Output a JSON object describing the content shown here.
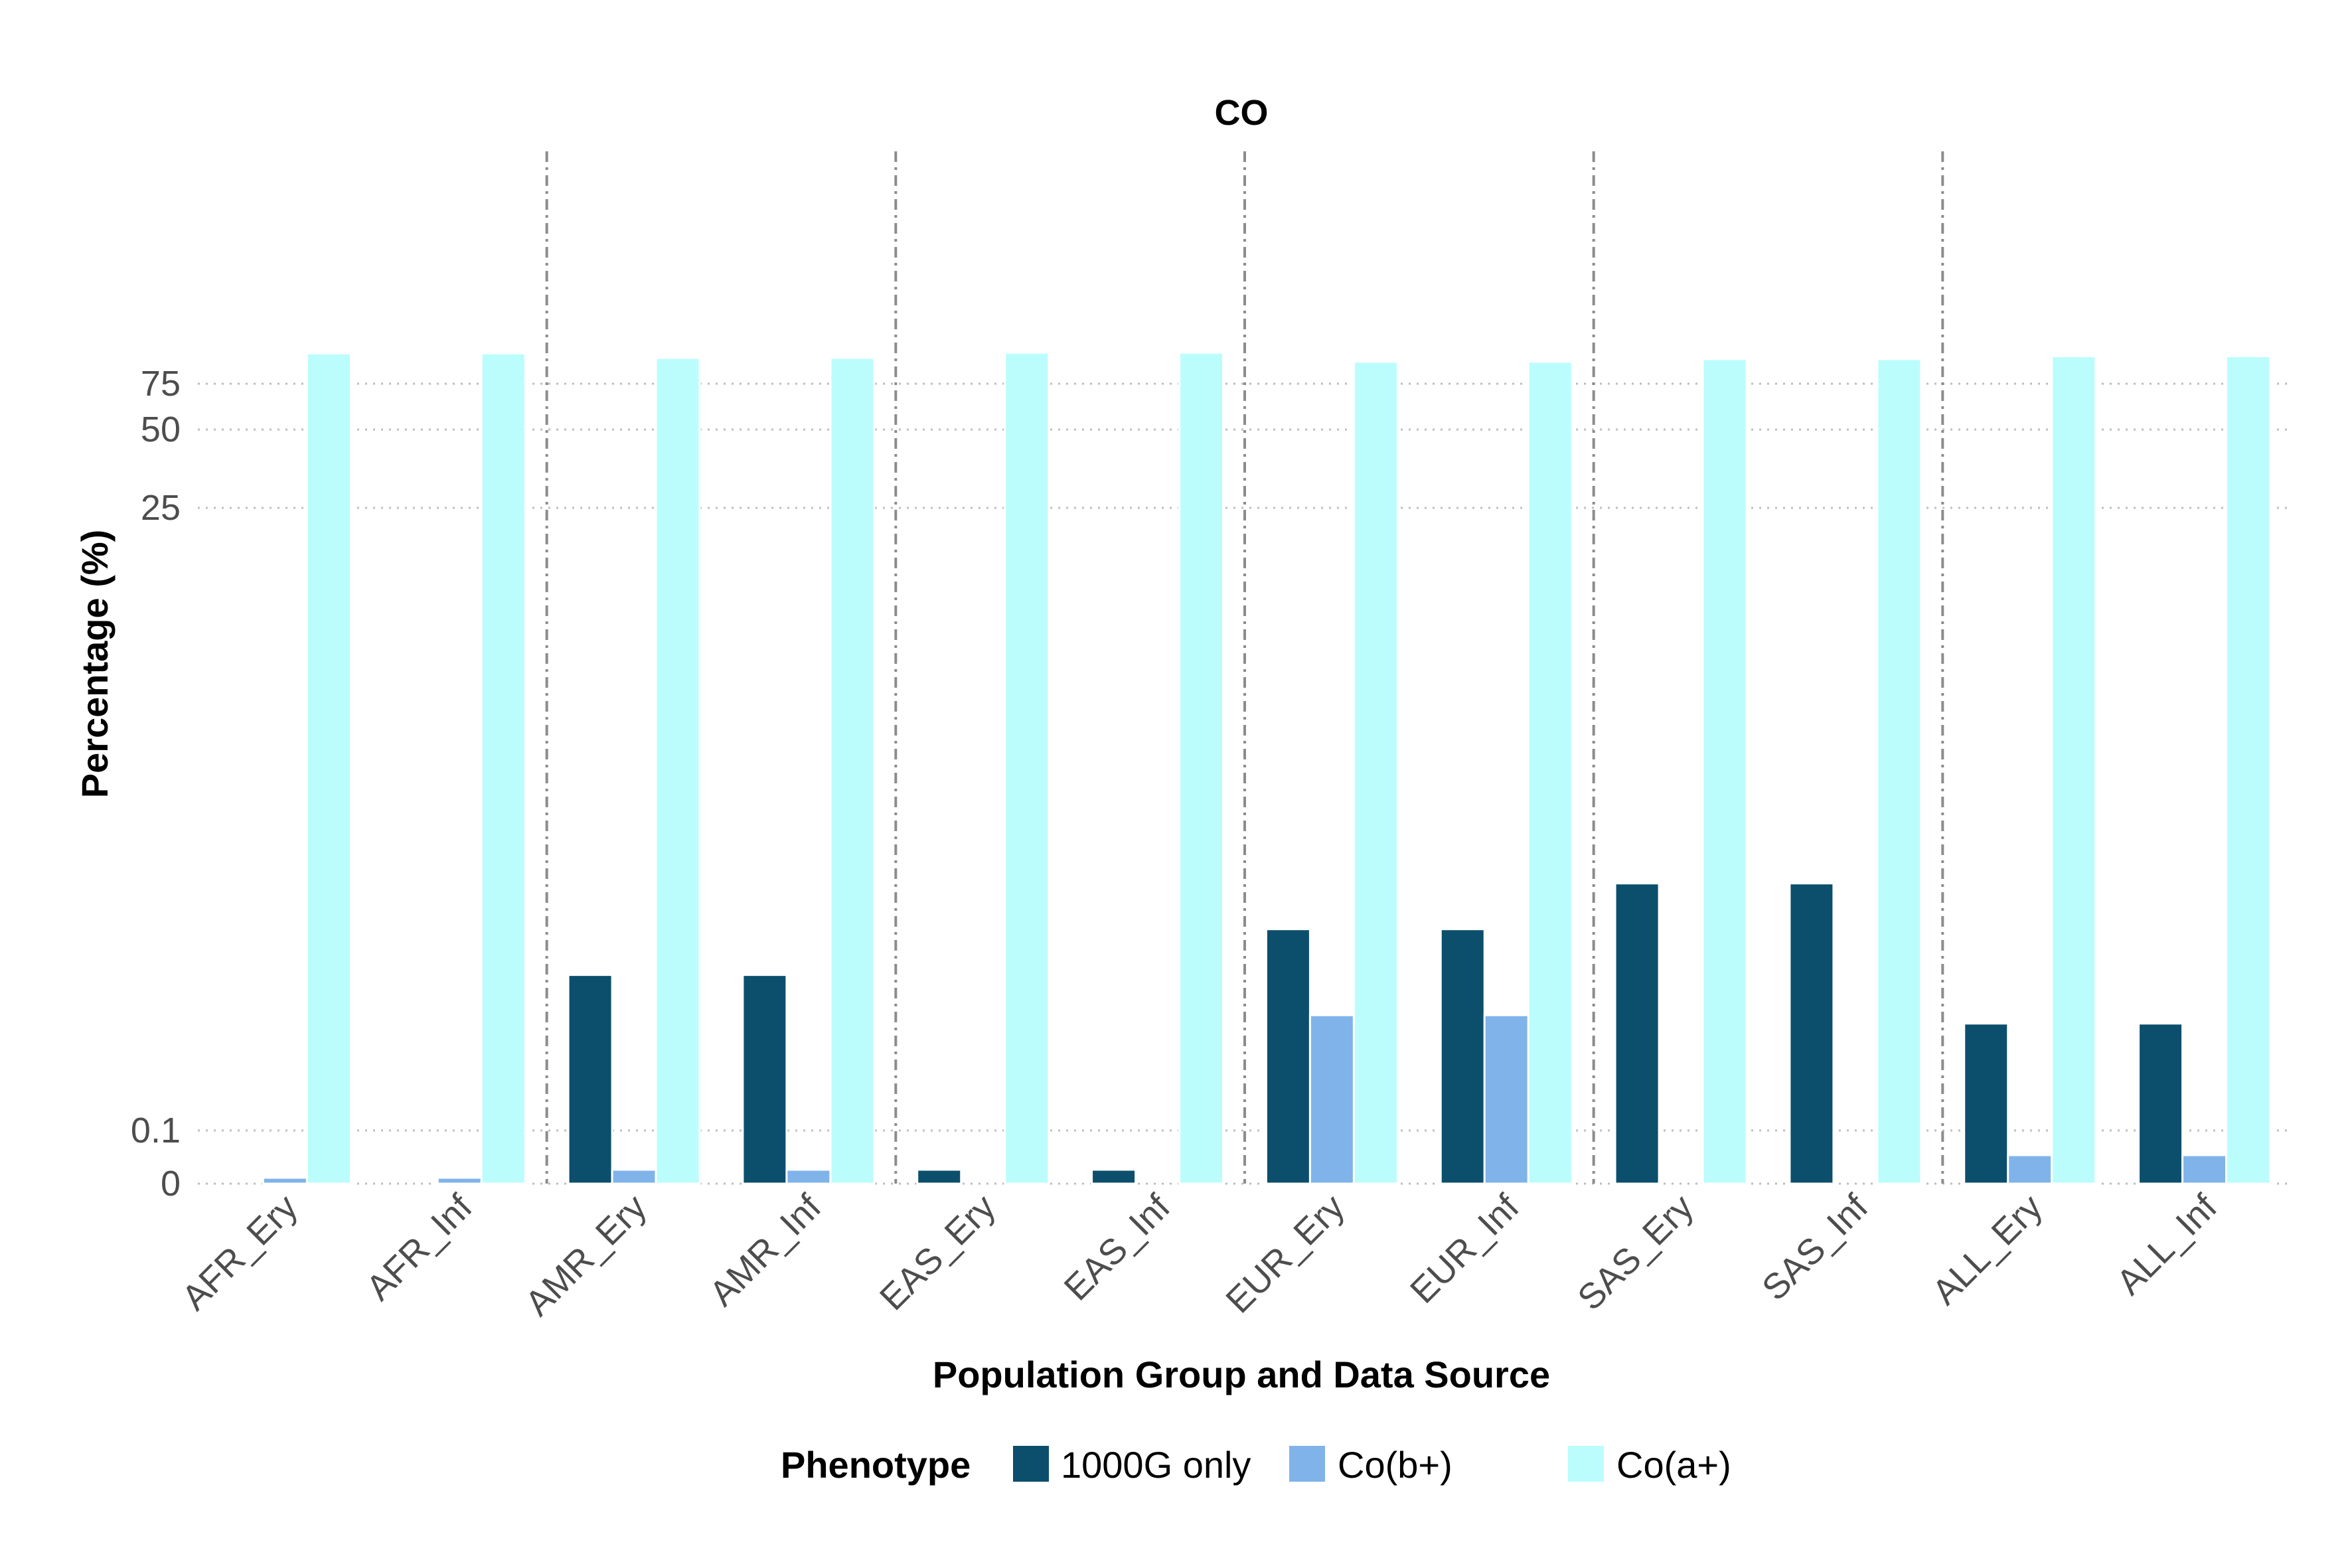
{
  "chart_data": {
    "type": "bar",
    "title": "CO",
    "xlabel": "Population Group and Data Source",
    "ylabel": "Percentage (%)",
    "y_axis_scale": "pseudo-log (expanded near 0)",
    "yticks": [
      0,
      0.1,
      25,
      50,
      75
    ],
    "ytick_labels": [
      "0",
      "0.1",
      "25",
      "50",
      "75"
    ],
    "ylim": [
      0,
      100
    ],
    "grid": "horizontal dotted",
    "group_separators": "dash-dot vertical lines between population groups",
    "categories": [
      "AFR_Ery",
      "AFR_Inf",
      "AMR_Ery",
      "AMR_Inf",
      "EAS_Ery",
      "EAS_Inf",
      "EUR_Ery",
      "EUR_Inf",
      "SAS_Ery",
      "SAS_Inf",
      "ALL_Ery",
      "ALL_Inf"
    ],
    "series": [
      {
        "name": "1000G only",
        "color": "#0b4f6c",
        "values": [
          0.055,
          0.055,
          0.4,
          0.4,
          0.07,
          0.07,
          0.6,
          0.6,
          0.9,
          0.9,
          0.26,
          0.26
        ]
      },
      {
        "name": "Co(b+)",
        "color": "#7fb3ea",
        "values": [
          0.065,
          0.065,
          0.07,
          0.07,
          0,
          0,
          0.28,
          0.28,
          0.04,
          0.04,
          0.08,
          0.08
        ]
      },
      {
        "name": "Co(a+)",
        "color": "#bbfdfd",
        "values": [
          98.1,
          98.1,
          94.2,
          94.2,
          98.7,
          98.7,
          91.1,
          91.1,
          93.2,
          93.2,
          95.7,
          95.7
        ]
      }
    ],
    "legend": {
      "title": "Phenotype",
      "position": "bottom"
    }
  }
}
